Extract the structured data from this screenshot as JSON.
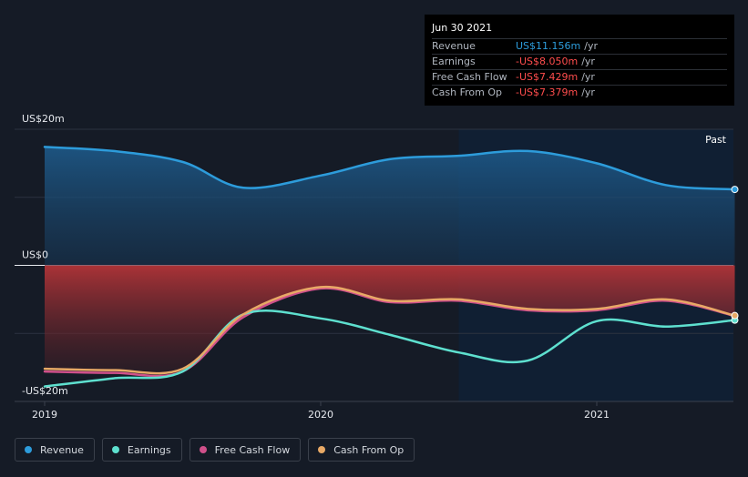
{
  "tooltip": {
    "date": "Jun 30 2021",
    "rows": [
      {
        "label": "Revenue",
        "value": "US$11.156m",
        "unit": "/yr",
        "color": "#2d9cdb"
      },
      {
        "label": "Earnings",
        "value": "-US$8.050m",
        "unit": "/yr",
        "color": "#ff4d4d"
      },
      {
        "label": "Free Cash Flow",
        "value": "-US$7.429m",
        "unit": "/yr",
        "color": "#ff4d4d"
      },
      {
        "label": "Cash From Op",
        "value": "-US$7.379m",
        "unit": "/yr",
        "color": "#ff4d4d"
      }
    ]
  },
  "legend": [
    {
      "label": "Revenue",
      "color": "#2d9cdb"
    },
    {
      "label": "Earnings",
      "color": "#5ee0cf"
    },
    {
      "label": "Free Cash Flow",
      "color": "#d0508a"
    },
    {
      "label": "Cash From Op",
      "color": "#e8a966"
    }
  ],
  "chart_data": {
    "type": "line",
    "past_label": "Past",
    "y_tick_labels": [
      "US$20m",
      "US$0",
      "-US$20m"
    ],
    "ylim": [
      -20,
      20
    ],
    "xlim": [
      2019,
      2021.5
    ],
    "x_ticks": [
      2019,
      2020,
      2021
    ],
    "x_tick_labels": [
      "2019",
      "2020",
      "2021"
    ],
    "past_start": 2020.5,
    "grid": true,
    "legend_position": "bottom-left",
    "series": [
      {
        "name": "Revenue",
        "color": "#2d9cdb",
        "points": [
          [
            2019.0,
            17.4
          ],
          [
            2019.25,
            16.8
          ],
          [
            2019.5,
            15.2
          ],
          [
            2019.72,
            11.4
          ],
          [
            2020.0,
            13.2
          ],
          [
            2020.25,
            15.6
          ],
          [
            2020.5,
            16.1
          ],
          [
            2020.75,
            16.8
          ],
          [
            2021.0,
            15.0
          ],
          [
            2021.25,
            11.8
          ],
          [
            2021.5,
            11.156
          ]
        ]
      },
      {
        "name": "Earnings",
        "color": "#5ee0cf",
        "points": [
          [
            2019.0,
            -17.8
          ],
          [
            2019.25,
            -16.6
          ],
          [
            2019.5,
            -15.6
          ],
          [
            2019.72,
            -7.2
          ],
          [
            2020.0,
            -7.8
          ],
          [
            2020.25,
            -10.2
          ],
          [
            2020.5,
            -12.8
          ],
          [
            2020.75,
            -14.0
          ],
          [
            2021.0,
            -8.2
          ],
          [
            2021.25,
            -9.0
          ],
          [
            2021.5,
            -8.05
          ]
        ]
      },
      {
        "name": "Free Cash Flow",
        "color": "#d0508a",
        "points": [
          [
            2019.0,
            -15.6
          ],
          [
            2019.25,
            -15.8
          ],
          [
            2019.5,
            -15.6
          ],
          [
            2019.72,
            -7.6
          ],
          [
            2020.0,
            -3.4
          ],
          [
            2020.25,
            -5.4
          ],
          [
            2020.5,
            -5.2
          ],
          [
            2020.75,
            -6.6
          ],
          [
            2021.0,
            -6.6
          ],
          [
            2021.25,
            -5.2
          ],
          [
            2021.5,
            -7.429
          ]
        ]
      },
      {
        "name": "Cash From Op",
        "color": "#e8a966",
        "points": [
          [
            2019.0,
            -15.2
          ],
          [
            2019.25,
            -15.4
          ],
          [
            2019.5,
            -15.2
          ],
          [
            2019.72,
            -7.2
          ],
          [
            2020.0,
            -3.2
          ],
          [
            2020.25,
            -5.2
          ],
          [
            2020.5,
            -5.0
          ],
          [
            2020.75,
            -6.4
          ],
          [
            2021.0,
            -6.4
          ],
          [
            2021.25,
            -5.0
          ],
          [
            2021.5,
            -7.379
          ]
        ]
      }
    ]
  }
}
